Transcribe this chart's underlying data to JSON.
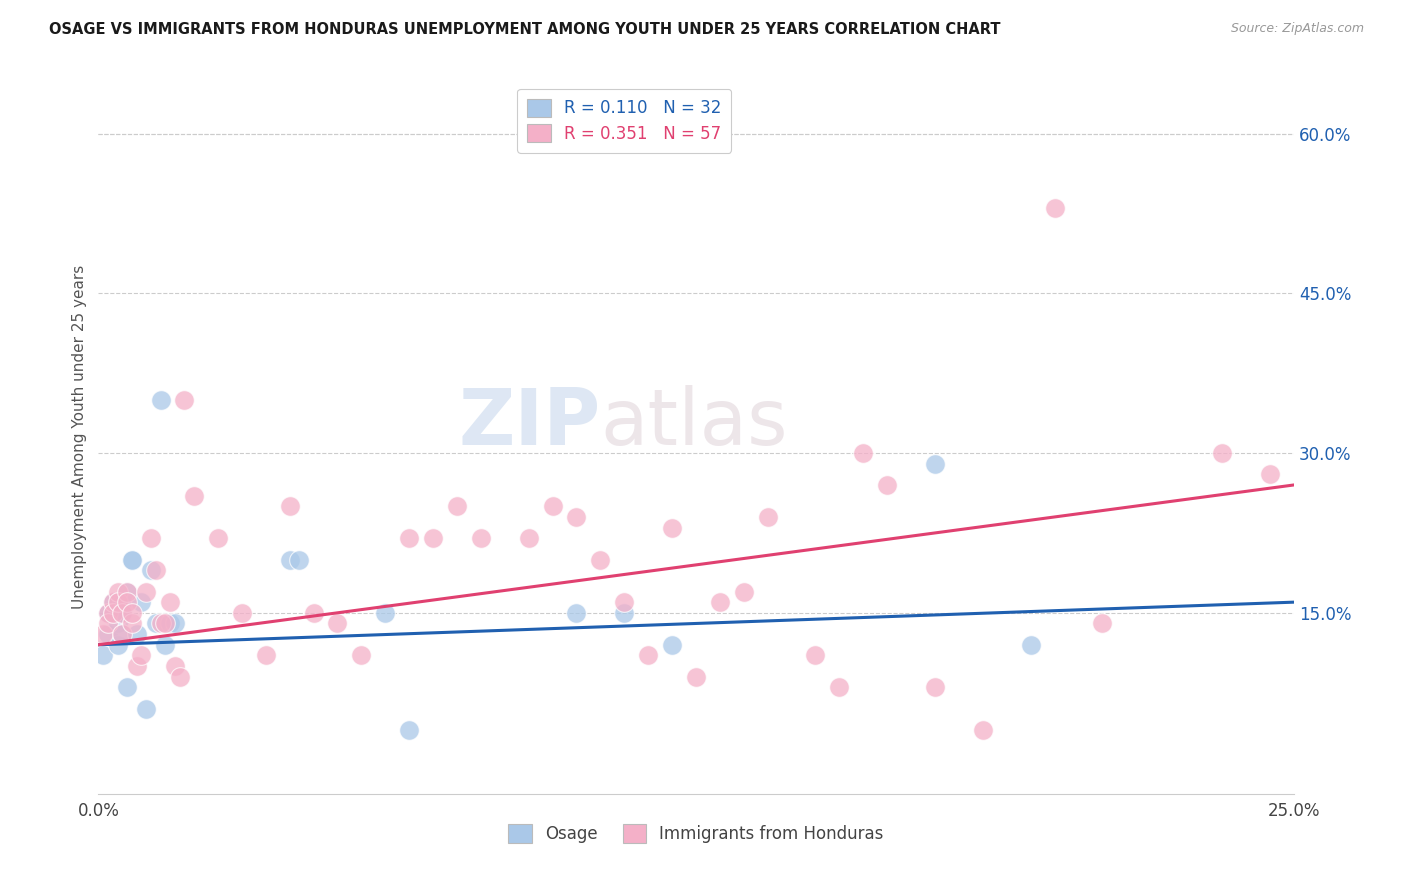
{
  "title": "OSAGE VS IMMIGRANTS FROM HONDURAS UNEMPLOYMENT AMONG YOUTH UNDER 25 YEARS CORRELATION CHART",
  "source": "Source: ZipAtlas.com",
  "ylabel": "Unemployment Among Youth under 25 years",
  "xlim": [
    0,
    0.25
  ],
  "ylim": [
    -0.02,
    0.65
  ],
  "yticks_right": [
    0.15,
    0.3,
    0.45,
    0.6
  ],
  "ytick_right_labels": [
    "15.0%",
    "30.0%",
    "45.0%",
    "60.0%"
  ],
  "osage_color": "#aac8e8",
  "honduras_color": "#f4b0c8",
  "osage_line_color": "#2060b0",
  "honduras_line_color": "#e04070",
  "legend_r1": "R = 0.110",
  "legend_n1": "N = 32",
  "legend_r2": "R = 0.351",
  "legend_n2": "N = 57",
  "watermark_zip": "ZIP",
  "watermark_atlas": "atlas",
  "osage_x": [
    0.001,
    0.002,
    0.002,
    0.003,
    0.003,
    0.004,
    0.004,
    0.005,
    0.005,
    0.005,
    0.006,
    0.006,
    0.007,
    0.007,
    0.008,
    0.009,
    0.01,
    0.011,
    0.012,
    0.013,
    0.014,
    0.015,
    0.016,
    0.04,
    0.042,
    0.06,
    0.065,
    0.1,
    0.11,
    0.12,
    0.175,
    0.195
  ],
  "osage_y": [
    0.11,
    0.15,
    0.13,
    0.16,
    0.15,
    0.14,
    0.12,
    0.16,
    0.15,
    0.13,
    0.08,
    0.17,
    0.2,
    0.2,
    0.13,
    0.16,
    0.06,
    0.19,
    0.14,
    0.35,
    0.12,
    0.14,
    0.14,
    0.2,
    0.2,
    0.15,
    0.04,
    0.15,
    0.15,
    0.12,
    0.29,
    0.12
  ],
  "honduras_x": [
    0.001,
    0.002,
    0.002,
    0.003,
    0.003,
    0.004,
    0.004,
    0.005,
    0.005,
    0.006,
    0.006,
    0.007,
    0.007,
    0.008,
    0.009,
    0.01,
    0.011,
    0.012,
    0.013,
    0.014,
    0.015,
    0.016,
    0.017,
    0.018,
    0.02,
    0.025,
    0.03,
    0.035,
    0.04,
    0.045,
    0.05,
    0.055,
    0.065,
    0.07,
    0.075,
    0.08,
    0.09,
    0.095,
    0.1,
    0.105,
    0.11,
    0.115,
    0.12,
    0.125,
    0.13,
    0.135,
    0.14,
    0.15,
    0.155,
    0.16,
    0.165,
    0.175,
    0.185,
    0.2,
    0.21,
    0.235,
    0.245
  ],
  "honduras_y": [
    0.13,
    0.15,
    0.14,
    0.16,
    0.15,
    0.17,
    0.16,
    0.13,
    0.15,
    0.17,
    0.16,
    0.14,
    0.15,
    0.1,
    0.11,
    0.17,
    0.22,
    0.19,
    0.14,
    0.14,
    0.16,
    0.1,
    0.09,
    0.35,
    0.26,
    0.22,
    0.15,
    0.11,
    0.25,
    0.15,
    0.14,
    0.11,
    0.22,
    0.22,
    0.25,
    0.22,
    0.22,
    0.25,
    0.24,
    0.2,
    0.16,
    0.11,
    0.23,
    0.09,
    0.16,
    0.17,
    0.24,
    0.11,
    0.08,
    0.3,
    0.27,
    0.08,
    0.04,
    0.53,
    0.14,
    0.3,
    0.28
  ],
  "background_color": "#ffffff",
  "grid_color": "#cccccc"
}
